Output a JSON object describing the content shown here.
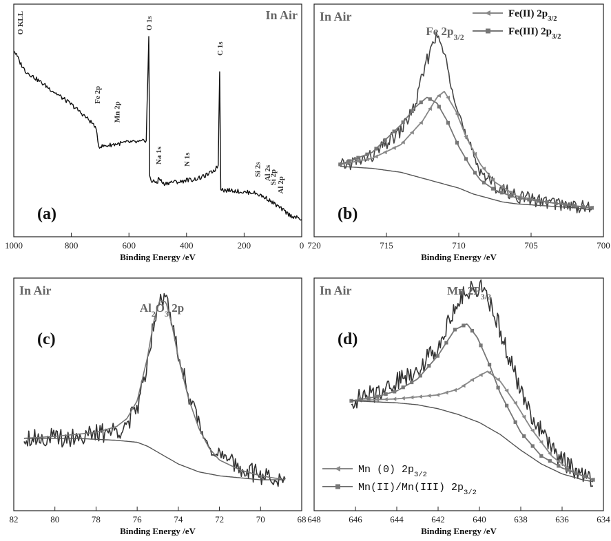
{
  "chart_data": [
    {
      "panel": "(a)",
      "type": "line",
      "title": "In Air",
      "xlabel": "Binding Energy /eV",
      "ylabel": "",
      "xlim": [
        1000,
        0
      ],
      "x_ticks": [
        "1000",
        "800",
        "600",
        "400",
        "200",
        "0"
      ],
      "peak_labels": [
        "O KLL",
        "Fe 2p",
        "Mn 2p",
        "O 1s",
        "Na 1s",
        "N 1s",
        "C 1s",
        "Si 2s",
        "Al 2s",
        "Si 2p",
        "Al 2p"
      ],
      "peak_positions": [
        978,
        711,
        642,
        531,
        497,
        400,
        285,
        154,
        119,
        100,
        74
      ],
      "series": [
        {
          "x": [
            1000,
            985,
            978,
            960,
            900,
            850,
            800,
            750,
            720,
            711,
            705,
            690,
            650,
            600,
            560,
            540,
            531,
            528,
            520,
            500,
            497,
            480,
            450,
            420,
            400,
            380,
            350,
            320,
            300,
            290,
            285,
            281,
            270,
            240,
            200,
            170,
            150,
            120,
            100,
            80,
            60,
            40,
            20,
            0
          ],
          "y": [
            0.82,
            0.78,
            0.76,
            0.72,
            0.66,
            0.61,
            0.56,
            0.5,
            0.46,
            0.42,
            0.36,
            0.36,
            0.37,
            0.38,
            0.38,
            0.39,
            0.88,
            0.22,
            0.19,
            0.19,
            0.21,
            0.18,
            0.19,
            0.19,
            0.2,
            0.2,
            0.21,
            0.23,
            0.25,
            0.27,
            0.72,
            0.16,
            0.15,
            0.15,
            0.14,
            0.14,
            0.13,
            0.11,
            0.09,
            0.07,
            0.05,
            0.03,
            0.02,
            0.01
          ]
        }
      ]
    },
    {
      "panel": "(b)",
      "type": "line",
      "title": "In Air",
      "main_label": "Fe 2p3/2",
      "xlabel": "Binding Energy /eV",
      "xlim": [
        720,
        700
      ],
      "x_ticks": [
        "720",
        "715",
        "710",
        "705",
        "700"
      ],
      "legend": [
        "Fe(II) 2p3/2",
        "Fe(III) 2p3/2"
      ],
      "legend_position": "top-right",
      "series": [
        {
          "name": "",
          "x": [
            718.2,
            716,
            714,
            713,
            712.5,
            712,
            711.7,
            711.2,
            710.5,
            709.5,
            708.5,
            707.5,
            706,
            704,
            702,
            700.8
          ],
          "y": [
            0.22,
            0.27,
            0.4,
            0.53,
            0.68,
            0.8,
            0.88,
            0.84,
            0.64,
            0.36,
            0.2,
            0.12,
            0.07,
            0.04,
            0.02,
            0.01
          ]
        },
        {
          "name": "Fe(II) 2p3/2",
          "x": [
            718.2,
            716,
            714,
            712.5,
            711.5,
            711.0,
            710.2,
            709.5,
            708.5,
            707.5,
            706,
            704,
            702,
            700.8
          ],
          "y": [
            0.23,
            0.26,
            0.33,
            0.45,
            0.57,
            0.6,
            0.5,
            0.37,
            0.23,
            0.14,
            0.07,
            0.04,
            0.02,
            0.01
          ]
        },
        {
          "name": "Fe(III) 2p3/2",
          "x": [
            718.2,
            716,
            714,
            713,
            712.2,
            711.5,
            710.8,
            710,
            709.2,
            708.5,
            707.5,
            706,
            704,
            702,
            700.8
          ],
          "y": [
            0.23,
            0.29,
            0.43,
            0.52,
            0.57,
            0.54,
            0.45,
            0.32,
            0.22,
            0.15,
            0.1,
            0.06,
            0.04,
            0.02,
            0.01
          ]
        },
        {
          "name": "",
          "x": [
            718.2,
            716,
            714,
            713,
            712,
            711,
            710,
            709,
            708,
            707,
            706,
            704,
            702,
            700.8
          ],
          "y": [
            0.22,
            0.21,
            0.19,
            0.17,
            0.15,
            0.13,
            0.11,
            0.08,
            0.06,
            0.04,
            0.03,
            0.02,
            0.01,
            0.0
          ]
        }
      ]
    },
    {
      "panel": "(c)",
      "type": "line",
      "title": "In Air",
      "main_label": "Al2O3 2p",
      "xlabel": "Binding Energy /eV",
      "xlim": [
        82,
        68
      ],
      "x_ticks": [
        "82",
        "80",
        "78",
        "76",
        "74",
        "72",
        "70",
        "68"
      ],
      "series": [
        {
          "name": "",
          "x": [
            81.5,
            80,
            78,
            77,
            76.5,
            76,
            75.5,
            75.2,
            74.9,
            74.6,
            74.3,
            74,
            73.5,
            73,
            72.5,
            72,
            71,
            70,
            68.8
          ],
          "y": [
            0.24,
            0.23,
            0.25,
            0.27,
            0.3,
            0.38,
            0.62,
            0.82,
            0.96,
            0.94,
            0.8,
            0.66,
            0.46,
            0.3,
            0.2,
            0.14,
            0.08,
            0.04,
            0.02
          ]
        },
        {
          "name": "",
          "x": [
            81.5,
            80,
            78,
            77,
            76.5,
            76,
            75.5,
            75.2,
            74.9,
            74.6,
            74.3,
            74,
            73.5,
            73,
            72.5,
            72,
            71,
            70,
            68.8
          ],
          "y": [
            0.23,
            0.24,
            0.26,
            0.29,
            0.33,
            0.42,
            0.64,
            0.82,
            0.93,
            0.92,
            0.8,
            0.64,
            0.43,
            0.28,
            0.18,
            0.12,
            0.07,
            0.04,
            0.02
          ]
        },
        {
          "name": "",
          "x": [
            81.5,
            79,
            77,
            76,
            75.5,
            75,
            74.5,
            74,
            73,
            72,
            71,
            70,
            68.8
          ],
          "y": [
            0.23,
            0.23,
            0.22,
            0.21,
            0.19,
            0.16,
            0.13,
            0.1,
            0.06,
            0.04,
            0.03,
            0.02,
            0.02
          ]
        }
      ]
    },
    {
      "panel": "(d)",
      "type": "line",
      "title": "In Air",
      "main_label": "Mn 2P3/2",
      "xlabel": "Binding Energy /eV",
      "xlim": [
        648,
        634
      ],
      "x_ticks": [
        "648",
        "646",
        "644",
        "642",
        "640",
        "638",
        "636",
        "634"
      ],
      "legend": [
        "Mn (0) 2p3/2",
        "Mn(II)/Mn(III) 2p3/2"
      ],
      "legend_position": "bottom-left",
      "series": [
        {
          "name": "",
          "x": [
            646.2,
            645,
            644,
            643,
            642,
            641.5,
            641,
            640.5,
            640,
            639.5,
            639,
            638.5,
            638,
            637,
            636,
            635,
            634.5
          ],
          "y": [
            0.42,
            0.46,
            0.52,
            0.58,
            0.7,
            0.82,
            0.93,
            0.98,
            1.0,
            0.92,
            0.78,
            0.62,
            0.46,
            0.26,
            0.12,
            0.04,
            0.02
          ]
        },
        {
          "name": "Mn (0) 2p3/2",
          "x": [
            646.2,
            644,
            643,
            642,
            641,
            640.3,
            639.6,
            639,
            638.2,
            637.5,
            636.5,
            635.5,
            634.5
          ],
          "y": [
            0.42,
            0.43,
            0.44,
            0.45,
            0.48,
            0.53,
            0.57,
            0.52,
            0.4,
            0.28,
            0.14,
            0.06,
            0.02
          ]
        },
        {
          "name": "Mn(II)/Mn(III) 2p3/2",
          "x": [
            646.2,
            645,
            644,
            643,
            642,
            641.2,
            640.6,
            640.1,
            639.5,
            639,
            638,
            637,
            636,
            635,
            634.5
          ],
          "y": [
            0.42,
            0.44,
            0.47,
            0.53,
            0.65,
            0.78,
            0.81,
            0.74,
            0.6,
            0.46,
            0.26,
            0.14,
            0.08,
            0.04,
            0.02
          ]
        },
        {
          "name": "",
          "x": [
            646.2,
            644,
            643,
            642,
            641,
            640,
            639,
            638,
            637,
            636,
            635,
            634.5
          ],
          "y": [
            0.42,
            0.41,
            0.4,
            0.38,
            0.35,
            0.31,
            0.25,
            0.17,
            0.1,
            0.05,
            0.02,
            0.01
          ]
        }
      ]
    }
  ]
}
